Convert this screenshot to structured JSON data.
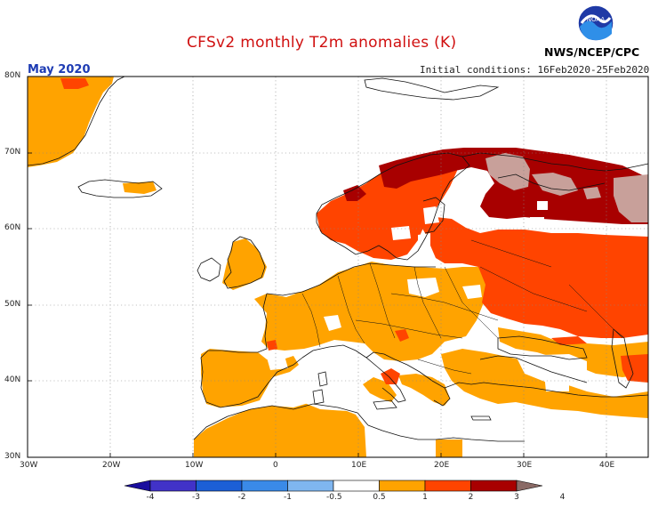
{
  "header": {
    "title": "CFSv2 monthly T2m anomalies (K)",
    "period": "May 2020",
    "initial_conditions": "Initial conditions: 16Feb2020-25Feb2020",
    "organization": "NWS/NCEP/CPC",
    "logo_text": "NOAA"
  },
  "map": {
    "lon_range": [
      -30,
      45
    ],
    "lat_range": [
      30,
      80
    ],
    "lat_labels": [
      "80N",
      "70N",
      "60N",
      "50N",
      "40N",
      "30N"
    ],
    "lon_labels": [
      "30W",
      "20W",
      "10W",
      "0",
      "10E",
      "20E",
      "30E",
      "40E"
    ],
    "grid": true,
    "gridline_style": "dotted"
  },
  "legend": {
    "labels": [
      "-4",
      "-3",
      "-2",
      "-1",
      "-0.5",
      "0.5",
      "1",
      "2",
      "3",
      "4"
    ],
    "colors": [
      "#1a0e9e",
      "#4132c8",
      "#1c5fd6",
      "#3a8ae8",
      "#7fb6f0",
      "#ffffff",
      "#ffa300",
      "#ff4400",
      "#a80000",
      "#c8a09a"
    ]
  },
  "colors": {
    "anomaly_0_5_to_1": "#ffa300",
    "anomaly_1_to_2": "#ff4400",
    "anomaly_2_to_3": "#a80000",
    "anomaly_3_to_4": "#c8a09a"
  }
}
